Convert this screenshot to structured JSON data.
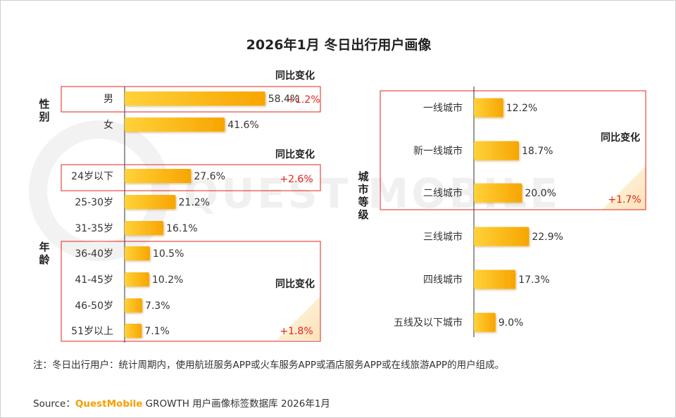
{
  "title": "2026年1月 冬日出行用户画像",
  "watermark": "QUEST MOBILE",
  "footnote": "注：冬日出行用户：统计周期内，使用航班服务APP或火车服务APP或酒店服务APP或在线旅游APP的用户组成。",
  "source": {
    "prefix": "Source：",
    "brand": "QuestMobile",
    "suffix": " GROWTH 用户画像标签数据库 2026年1月"
  },
  "colors": {
    "bar_start": "#ffd23a",
    "bar_end": "#f7a500",
    "highlight_border": "#e2241c",
    "change_text": "#e2241c"
  },
  "chart_data": [
    {
      "type": "bar",
      "orientation": "horizontal",
      "group_label": "性别",
      "categories": [
        "男",
        "女"
      ],
      "values": [
        58.4,
        41.6
      ],
      "value_labels": [
        "58.4%",
        "41.6%"
      ],
      "unit": "%",
      "change_label": "同比变化",
      "highlight": {
        "categories": [
          "男"
        ],
        "change": "+1.2%"
      }
    },
    {
      "type": "bar",
      "orientation": "horizontal",
      "group_label": "年龄",
      "categories": [
        "24岁以下",
        "25-30岁",
        "31-35岁",
        "36-40岁",
        "41-45岁",
        "46-50岁",
        "51岁以上"
      ],
      "values": [
        27.6,
        21.2,
        16.1,
        10.5,
        10.2,
        7.3,
        7.1
      ],
      "value_labels": [
        "27.6%",
        "21.2%",
        "16.1%",
        "10.5%",
        "10.2%",
        "7.3%",
        "7.1%"
      ],
      "unit": "%",
      "highlights": [
        {
          "categories": [
            "24岁以下"
          ],
          "change_label": "同比变化",
          "change": "+2.6%"
        },
        {
          "categories": [
            "36-40岁",
            "41-45岁",
            "46-50岁",
            "51岁以上"
          ],
          "change_label": "同比变化",
          "change": "+1.8%"
        }
      ]
    },
    {
      "type": "bar",
      "orientation": "horizontal",
      "group_label": "城市等级",
      "categories": [
        "一线城市",
        "新一线城市",
        "二线城市",
        "三线城市",
        "四线城市",
        "五线及以下城市"
      ],
      "values": [
        12.2,
        18.7,
        20.0,
        22.9,
        17.3,
        9.0
      ],
      "value_labels": [
        "12.2%",
        "18.7%",
        "20.0%",
        "22.9%",
        "17.3%",
        "9.0%"
      ],
      "unit": "%",
      "highlight": {
        "categories": [
          "一线城市",
          "新一线城市",
          "二线城市"
        ],
        "change_label": "同比变化",
        "change": "+1.7%"
      }
    }
  ]
}
